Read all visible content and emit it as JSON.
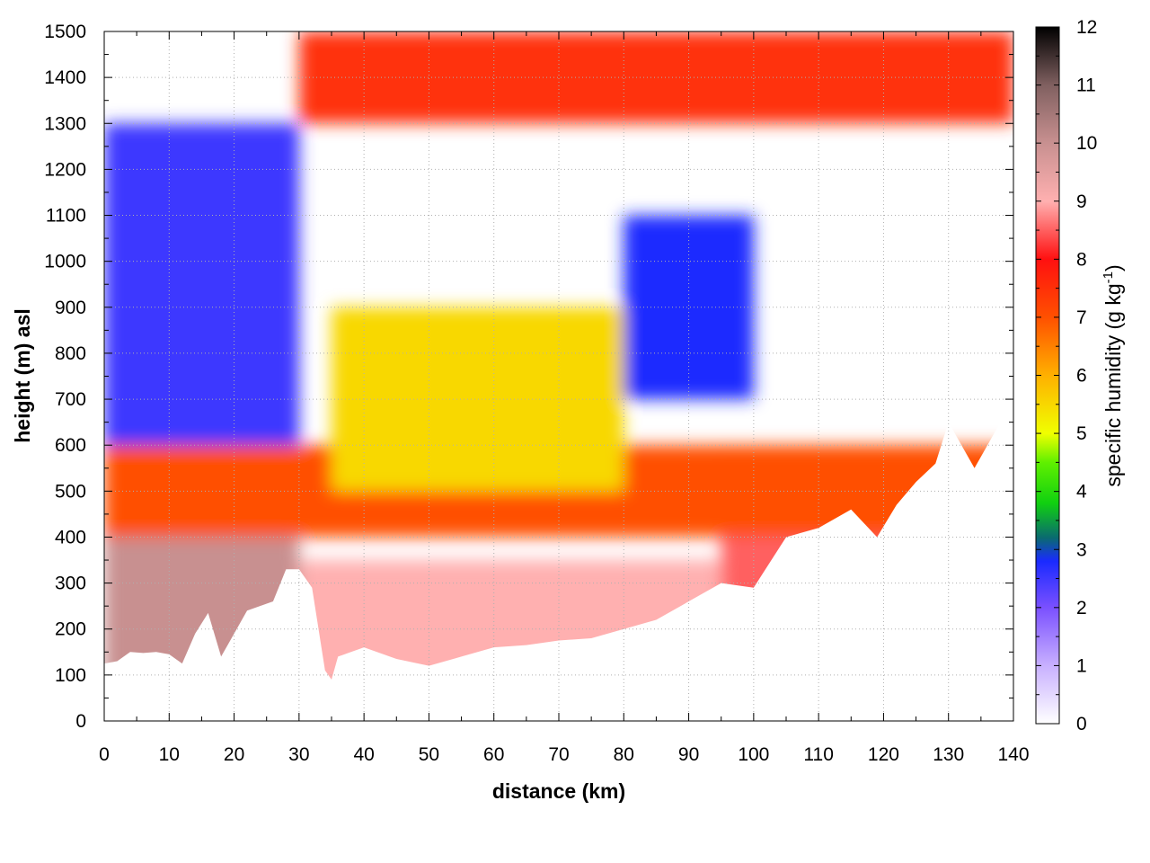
{
  "chart_data": {
    "type": "heatmap",
    "title": "",
    "xlabel": "distance (km)",
    "ylabel": "height (m) asl",
    "xlim": [
      0,
      140
    ],
    "ylim": [
      0,
      1500
    ],
    "x_ticks": [
      "0",
      "10",
      "20",
      "30",
      "40",
      "50",
      "60",
      "70",
      "80",
      "90",
      "100",
      "110",
      "120",
      "130",
      "140"
    ],
    "y_ticks": [
      "0",
      "100",
      "200",
      "300",
      "400",
      "500",
      "600",
      "700",
      "800",
      "900",
      "1000",
      "1100",
      "1200",
      "1300",
      "1400",
      "1500"
    ],
    "grid": true,
    "colorbar": {
      "label_main": "specific humidity (g kg",
      "label_sup": "-1",
      "label_end": ")",
      "range": [
        0,
        12
      ],
      "ticks": [
        "0",
        "1",
        "2",
        "3",
        "4",
        "5",
        "6",
        "7",
        "8",
        "9",
        "10",
        "11",
        "12"
      ],
      "colormap": [
        [
          0,
          "#ffffff"
        ],
        [
          1,
          "#c8b0ff"
        ],
        [
          2,
          "#7a50ff"
        ],
        [
          2.8,
          "#1a2aff"
        ],
        [
          3.2,
          "#0a6a70"
        ],
        [
          3.8,
          "#10d010"
        ],
        [
          4.5,
          "#60f000"
        ],
        [
          5,
          "#f0ff00"
        ],
        [
          6,
          "#ffb000"
        ],
        [
          7,
          "#ff5000"
        ],
        [
          8,
          "#ff1010"
        ],
        [
          9,
          "#ffb0b0"
        ],
        [
          10,
          "#c89090"
        ],
        [
          11,
          "#806060"
        ],
        [
          12,
          "#000000"
        ]
      ]
    },
    "terrain_height": {
      "x": [
        0,
        2,
        4,
        6,
        8,
        10,
        12,
        14,
        16,
        18,
        20,
        22,
        24,
        26,
        28,
        30,
        32,
        34,
        35,
        36,
        38,
        40,
        45,
        50,
        55,
        60,
        65,
        70,
        75,
        80,
        85,
        90,
        95,
        100,
        105,
        110,
        115,
        119,
        122,
        125,
        128,
        130,
        132,
        134,
        136,
        138,
        140
      ],
      "values": [
        125,
        130,
        150,
        148,
        150,
        145,
        125,
        190,
        235,
        140,
        190,
        240,
        250,
        260,
        330,
        330,
        290,
        110,
        90,
        140,
        150,
        160,
        135,
        120,
        140,
        160,
        165,
        175,
        180,
        200,
        220,
        260,
        300,
        290,
        400,
        420,
        460,
        400,
        470,
        520,
        560,
        650,
        600,
        550,
        600,
        650,
        700
      ]
    },
    "layers": [
      {
        "bottom": 0,
        "top": 400,
        "value": 10,
        "x_range": [
          0,
          30
        ]
      },
      {
        "bottom": 0,
        "top": 350,
        "value": 9,
        "x_range": [
          30,
          95
        ]
      },
      {
        "bottom": 0,
        "top": 600,
        "value": 8.5,
        "x_range": [
          95,
          140
        ]
      },
      {
        "bottom": 400,
        "top": 600,
        "value": 7,
        "x_range": [
          0,
          140
        ]
      },
      {
        "bottom": 600,
        "top": 1300,
        "value": 2.5,
        "x_range": [
          0,
          30
        ]
      },
      {
        "bottom": 500,
        "top": 900,
        "value": 5.5,
        "x_range": [
          35,
          80
        ]
      },
      {
        "bottom": 700,
        "top": 1100,
        "value": 2.8,
        "x_range": [
          80,
          100
        ]
      },
      {
        "bottom": 1300,
        "top": 1500,
        "value": 7.5,
        "x_range": [
          30,
          140
        ]
      }
    ]
  }
}
